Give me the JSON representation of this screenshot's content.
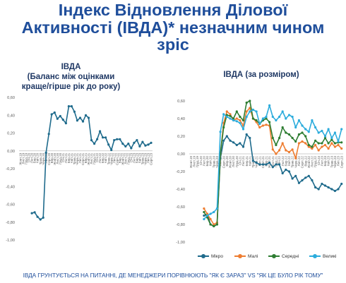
{
  "title_lines": [
    "Індекс Відновлення Ділової",
    "Активності (ІВДА)* незначним чином",
    "зріс"
  ],
  "footnote": "ІВДА ГРУНТУЄТЬСЯ НА ПИТАННІ, ДЕ МЕНЕДЖЕРИ ПОРІВНЮЮТЬ \"ЯК Є ЗАРАЗ\" VS \"ЯК ЦЕ БУЛО РІК ТОМУ\"",
  "colors": {
    "title": "#1f4e9b",
    "chart_line": "#1f6b8c",
    "micro": "#1f6b8c",
    "small": "#ee7d31",
    "medium": "#2e7d32",
    "large": "#2cacdc",
    "axis": "#bfbfbf"
  },
  "chart_data": [
    {
      "type": "line",
      "title_lines": [
        "ІВДА",
        "(Баланс між оцінками",
        "краще/гірше рік до року)"
      ],
      "categories": [
        "Лют.20",
        "Бер.20",
        "Квіт.20",
        "Трав.20",
        "Черв.20",
        "Лип.20",
        "Серп.20",
        "Вер.20",
        "Жовт.20",
        "Лист.20",
        "Груд.20",
        "Січ.21",
        "Лют.21",
        "Бер.21",
        "Квіт.21",
        "Трав.21",
        "Черв.21",
        "Лип.21",
        "Серп.21",
        "Вер.21",
        "Жовт.21",
        "Лист.21",
        "Груд.21",
        "Січ.22",
        "Лют.22",
        "Бер.22",
        "Квіт.22",
        "Трав.22",
        "Черв.22",
        "Лип.22",
        "Серп.22",
        "Вер.22",
        "Жовт.22",
        "Лист.22",
        "Груд.22",
        "Січ.23",
        "Лют.23",
        "Бер.23",
        "Квіт.23",
        "Трав.23",
        "Черв.23",
        "Лип.23",
        "Серп.23"
      ],
      "series": [
        {
          "values": [
            -0.7,
            -0.69,
            -0.74,
            -0.77,
            -0.75,
            -0.02,
            0.19,
            0.41,
            0.43,
            0.36,
            0.39,
            0.35,
            0.31,
            0.5,
            0.5,
            0.44,
            0.34,
            0.37,
            0.33,
            0.4,
            0.37,
            0.12,
            0.08,
            0.13,
            0.22,
            0.15,
            0.15,
            0.07,
            0.01,
            0.12,
            0.13,
            0.13,
            0.08,
            0.05,
            0.08,
            0.03,
            0.09,
            0.12,
            0.05,
            0.1,
            0.06,
            0.07,
            0.09
          ]
        }
      ],
      "ylim": [
        -1.0,
        0.6
      ],
      "yticks": [
        -1.0,
        -0.8,
        -0.6,
        -0.4,
        -0.2,
        0.0,
        0.2,
        0.4,
        0.6
      ],
      "ytick_labels": [
        "-1,00",
        "-0,80",
        "-0,60",
        "-0,40",
        "-0,20",
        "0,00",
        "0,20",
        "0,40",
        "0,60"
      ],
      "xtick_labels": [
        "Жовт.19",
        "Лист.19",
        "Груд.19",
        "Січ.20",
        "Лют.20",
        "Бер.20",
        "Квіт.20",
        "Трав.20",
        "Черв.20",
        "Лип.20",
        "Серп.20",
        "Вер.20",
        "Жовт.20",
        "Лист.20",
        "Груд.20",
        "Січ.21",
        "Лют.21",
        "Бер.21",
        "Квіт.21",
        "Трав.21",
        "Черв.21",
        "Лип.21",
        "Серп.21",
        "Вер.21",
        "Жовт.21",
        "Лист.21",
        "Груд.21",
        "Січ.22",
        "Лют.22",
        "Бер.22",
        "Квіт.22",
        "Трав.22",
        "Черв.22",
        "Лип.22",
        "Серп.22",
        "Вер.22",
        "Жовт.22",
        "Лист.22",
        "Груд.22",
        "Січ.23",
        "Лют.23",
        "Бер.23",
        "Квіт.23",
        "Трав.23",
        "Черв.23",
        "Лип.23",
        "Серп.23"
      ],
      "grid": false
    },
    {
      "type": "line",
      "title_lines": [
        "ІВДА (за розміром)"
      ],
      "series": [
        {
          "name": "Мікро",
          "values": [
            -0.7,
            -0.68,
            -0.8,
            -0.82,
            -0.8,
            -0.05,
            0.15,
            0.2,
            0.15,
            0.13,
            0.1,
            0.12,
            0.08,
            0.22,
            0.18,
            -0.08,
            -0.1,
            -0.12,
            -0.12,
            -0.12,
            -0.1,
            -0.15,
            -0.12,
            -0.12,
            -0.22,
            -0.18,
            -0.2,
            -0.28,
            -0.25,
            -0.33,
            -0.3,
            -0.27,
            -0.25,
            -0.3,
            -0.38,
            -0.4,
            -0.34,
            -0.36,
            -0.38,
            -0.4,
            -0.42,
            -0.4,
            -0.34
          ]
        },
        {
          "name": "Малі",
          "values": [
            -0.62,
            -0.68,
            -0.74,
            -0.8,
            -0.78,
            0.0,
            0.35,
            0.48,
            0.45,
            0.38,
            0.4,
            0.38,
            0.32,
            0.48,
            0.52,
            0.4,
            0.36,
            0.3,
            0.32,
            0.33,
            0.32,
            0.05,
            0.0,
            0.04,
            0.12,
            0.04,
            0.02,
            0.05,
            -0.05,
            0.12,
            0.14,
            0.12,
            0.08,
            0.06,
            0.1,
            0.04,
            0.08,
            0.1,
            0.06,
            0.12,
            0.08,
            0.1,
            0.06
          ]
        },
        {
          "name": "Середні",
          "values": [
            -0.66,
            -0.72,
            -0.8,
            -0.82,
            -0.8,
            0.0,
            0.3,
            0.44,
            0.43,
            0.4,
            0.48,
            0.42,
            0.38,
            0.58,
            0.6,
            0.4,
            0.38,
            0.34,
            0.38,
            0.4,
            0.36,
            0.18,
            0.1,
            0.18,
            0.3,
            0.24,
            0.22,
            0.18,
            0.14,
            0.22,
            0.24,
            0.2,
            0.1,
            0.08,
            0.15,
            0.12,
            0.12,
            0.18,
            0.12,
            0.16,
            0.12,
            0.13,
            0.13
          ]
        },
        {
          "name": "Великі",
          "values": [
            -0.74,
            -0.7,
            -0.68,
            -0.66,
            -0.62,
            0.25,
            0.45,
            0.42,
            0.4,
            0.38,
            0.37,
            0.35,
            0.28,
            0.42,
            0.48,
            0.5,
            0.48,
            0.34,
            0.4,
            0.42,
            0.55,
            0.42,
            0.38,
            0.42,
            0.48,
            0.4,
            0.44,
            0.42,
            0.3,
            0.38,
            0.32,
            0.28,
            0.25,
            0.38,
            0.3,
            0.24,
            0.26,
            0.2,
            0.28,
            0.18,
            0.24,
            0.14,
            0.28
          ]
        }
      ],
      "legend": "bottom",
      "ylim": [
        -1.0,
        0.6
      ],
      "yticks": [
        -1.0,
        -0.8,
        -0.6,
        -0.4,
        -0.2,
        0.0,
        0.2,
        0.4,
        0.6
      ],
      "ytick_labels": [
        "-1,00",
        "-0,80",
        "-0,60",
        "-0,40",
        "-0,20",
        "0,00",
        "0,20",
        "0,40",
        "0,60"
      ],
      "xtick_labels": [
        "Жовт.19",
        "Лист.19",
        "Груд.19",
        "Січ.20",
        "Лют.20",
        "Бер.20",
        "Квіт.20",
        "Трав.20",
        "Черв.20",
        "Лип.20",
        "Серп.20",
        "Вер.20",
        "Жовт.20",
        "Лист.20",
        "Груд.20",
        "Січ.21",
        "Лют.21",
        "Бер.21",
        "Квіт.21",
        "Трав.21",
        "Черв.21",
        "Лип.21",
        "Серп.21",
        "Вер.21",
        "Жовт.21",
        "Лист.21",
        "Груд.21",
        "Січ.22",
        "Лют.22",
        "Бер.22",
        "Квіт.22",
        "Трав.22",
        "Черв.22",
        "Лип.22",
        "Серп.22",
        "Вер.22",
        "Жовт.22",
        "Лист.22",
        "Груд.22",
        "Січ.23",
        "Лют.23",
        "Бер.23",
        "Квіт.23",
        "Трав.23",
        "Черв.23",
        "Лип.23",
        "Серп.23"
      ],
      "grid": false
    }
  ]
}
